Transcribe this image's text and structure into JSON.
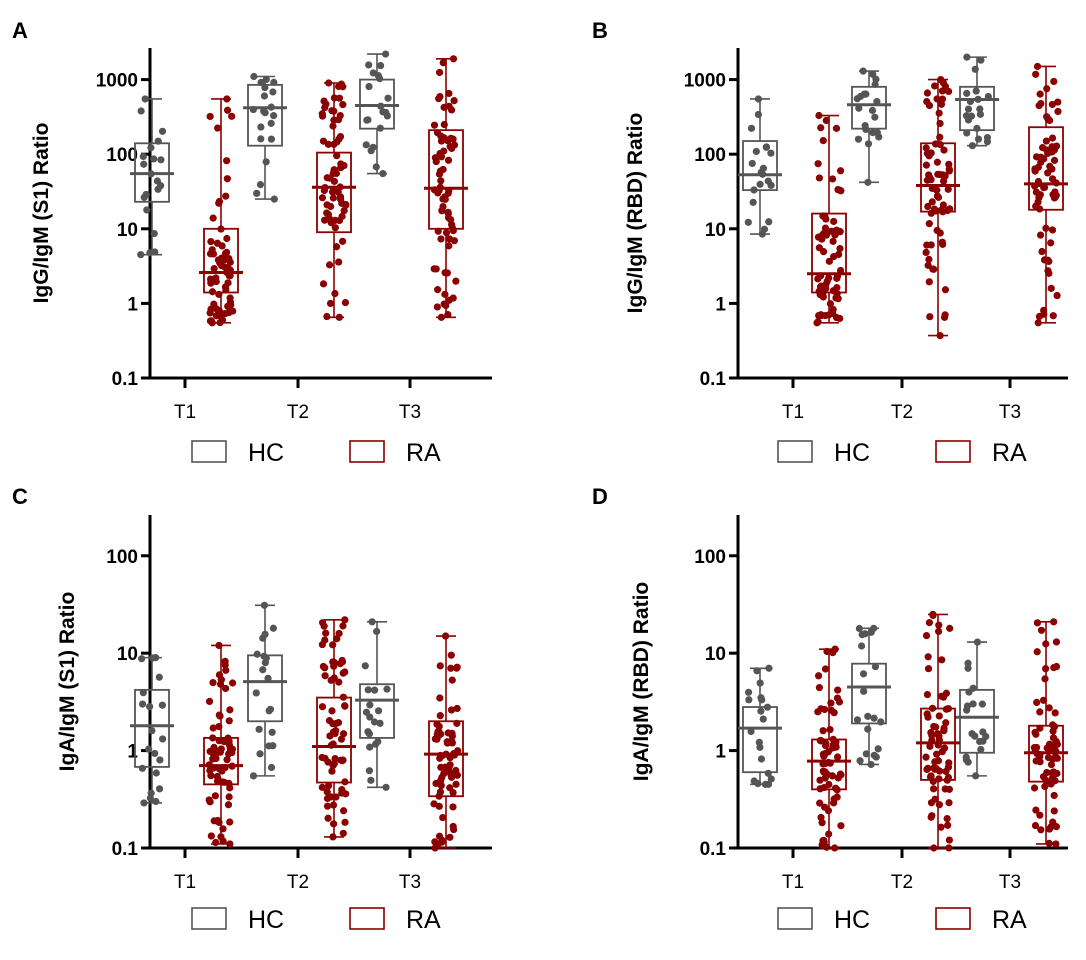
{
  "colors": {
    "HC": "#555555",
    "RA": "#8b0000"
  },
  "legend": [
    "HC",
    "RA"
  ],
  "chart_data": [
    {
      "panel": "A",
      "type": "box",
      "ylabel": "IgG/IgM (S1) Ratio",
      "yscale": "log",
      "ylim": [
        0.1,
        3000
      ],
      "yticks": [
        "0.1",
        "1",
        "10",
        "100",
        "1000"
      ],
      "categories": [
        "T1",
        "T2",
        "T3"
      ],
      "series": [
        {
          "name": "HC",
          "boxes": [
            {
              "min": 4.5,
              "q1": 23,
              "median": 55,
              "q3": 140,
              "max": 550,
              "n": 20,
              "seed": 11
            },
            {
              "min": 25,
              "q1": 130,
              "median": 420,
              "q3": 850,
              "max": 1100,
              "n": 20,
              "seed": 12
            },
            {
              "min": 55,
              "q1": 220,
              "median": 450,
              "q3": 1000,
              "max": 2200,
              "n": 20,
              "seed": 13
            }
          ]
        },
        {
          "name": "RA",
          "boxes": [
            {
              "min": 0.55,
              "q1": 1.4,
              "median": 2.6,
              "q3": 10,
              "max": 550,
              "n": 70,
              "seed": 14
            },
            {
              "min": 0.65,
              "q1": 9,
              "median": 36,
              "q3": 105,
              "max": 900,
              "n": 70,
              "seed": 15
            },
            {
              "min": 0.65,
              "q1": 10,
              "median": 35,
              "q3": 210,
              "max": 1900,
              "n": 70,
              "seed": 16
            }
          ]
        }
      ]
    },
    {
      "panel": "B",
      "type": "box",
      "ylabel": "IgG/IgM (RBD) Ratio",
      "yscale": "log",
      "ylim": [
        0.1,
        3000
      ],
      "yticks": [
        "0.1",
        "1",
        "10",
        "100",
        "1000"
      ],
      "categories": [
        "T1",
        "T2",
        "T3"
      ],
      "series": [
        {
          "name": "HC",
          "boxes": [
            {
              "min": 8.5,
              "q1": 33,
              "median": 53,
              "q3": 150,
              "max": 550,
              "n": 20,
              "seed": 21
            },
            {
              "min": 42,
              "q1": 220,
              "median": 460,
              "q3": 800,
              "max": 1300,
              "n": 20,
              "seed": 22
            },
            {
              "min": 130,
              "q1": 210,
              "median": 540,
              "q3": 800,
              "max": 2000,
              "n": 20,
              "seed": 23
            }
          ]
        },
        {
          "name": "RA",
          "boxes": [
            {
              "min": 0.55,
              "q1": 1.4,
              "median": 2.5,
              "q3": 16,
              "max": 330,
              "n": 70,
              "seed": 24
            },
            {
              "min": 0.37,
              "q1": 17,
              "median": 38,
              "q3": 140,
              "max": 1000,
              "n": 70,
              "seed": 25
            },
            {
              "min": 0.55,
              "q1": 18,
              "median": 40,
              "q3": 230,
              "max": 1500,
              "n": 70,
              "seed": 26
            }
          ]
        }
      ]
    },
    {
      "panel": "C",
      "type": "box",
      "ylabel": "IgA/IgM (S1) Ratio",
      "yscale": "log",
      "ylim": [
        0.1,
        250
      ],
      "yticks": [
        "0.1",
        "1",
        "10",
        "100"
      ],
      "categories": [
        "T1",
        "T2",
        "T3"
      ],
      "series": [
        {
          "name": "HC",
          "boxes": [
            {
              "min": 0.29,
              "q1": 0.68,
              "median": 1.8,
              "q3": 4.2,
              "max": 9,
              "n": 20,
              "seed": 31
            },
            {
              "min": 0.55,
              "q1": 2,
              "median": 5.1,
              "q3": 9.5,
              "max": 31,
              "n": 20,
              "seed": 32
            },
            {
              "min": 0.42,
              "q1": 1.35,
              "median": 3.3,
              "q3": 4.8,
              "max": 21,
              "n": 20,
              "seed": 33
            }
          ]
        },
        {
          "name": "RA",
          "boxes": [
            {
              "min": 0.11,
              "q1": 0.45,
              "median": 0.7,
              "q3": 1.35,
              "max": 12,
              "n": 70,
              "seed": 34
            },
            {
              "min": 0.13,
              "q1": 0.47,
              "median": 1.1,
              "q3": 3.5,
              "max": 22,
              "n": 70,
              "seed": 35
            },
            {
              "min": 0.1,
              "q1": 0.34,
              "median": 0.92,
              "q3": 2,
              "max": 15,
              "n": 70,
              "seed": 36
            }
          ]
        }
      ]
    },
    {
      "panel": "D",
      "type": "box",
      "ylabel": "IgA/IgM (RBD) Ratio",
      "yscale": "log",
      "ylim": [
        0.1,
        250
      ],
      "yticks": [
        "0.1",
        "1",
        "10",
        "100"
      ],
      "categories": [
        "T1",
        "T2",
        "T3"
      ],
      "series": [
        {
          "name": "HC",
          "boxes": [
            {
              "min": 0.45,
              "q1": 0.6,
              "median": 1.7,
              "q3": 2.8,
              "max": 7,
              "n": 20,
              "seed": 41
            },
            {
              "min": 0.72,
              "q1": 1.9,
              "median": 4.5,
              "q3": 7.8,
              "max": 18,
              "n": 20,
              "seed": 42
            },
            {
              "min": 0.55,
              "q1": 0.95,
              "median": 2.2,
              "q3": 4.2,
              "max": 13,
              "n": 20,
              "seed": 43
            }
          ]
        },
        {
          "name": "RA",
          "boxes": [
            {
              "min": 0.1,
              "q1": 0.4,
              "median": 0.78,
              "q3": 1.3,
              "max": 11,
              "n": 70,
              "seed": 44
            },
            {
              "min": 0.1,
              "q1": 0.5,
              "median": 1.2,
              "q3": 2.7,
              "max": 25,
              "n": 70,
              "seed": 45
            },
            {
              "min": 0.11,
              "q1": 0.48,
              "median": 0.95,
              "q3": 1.8,
              "max": 21,
              "n": 70,
              "seed": 46
            }
          ]
        }
      ]
    }
  ]
}
